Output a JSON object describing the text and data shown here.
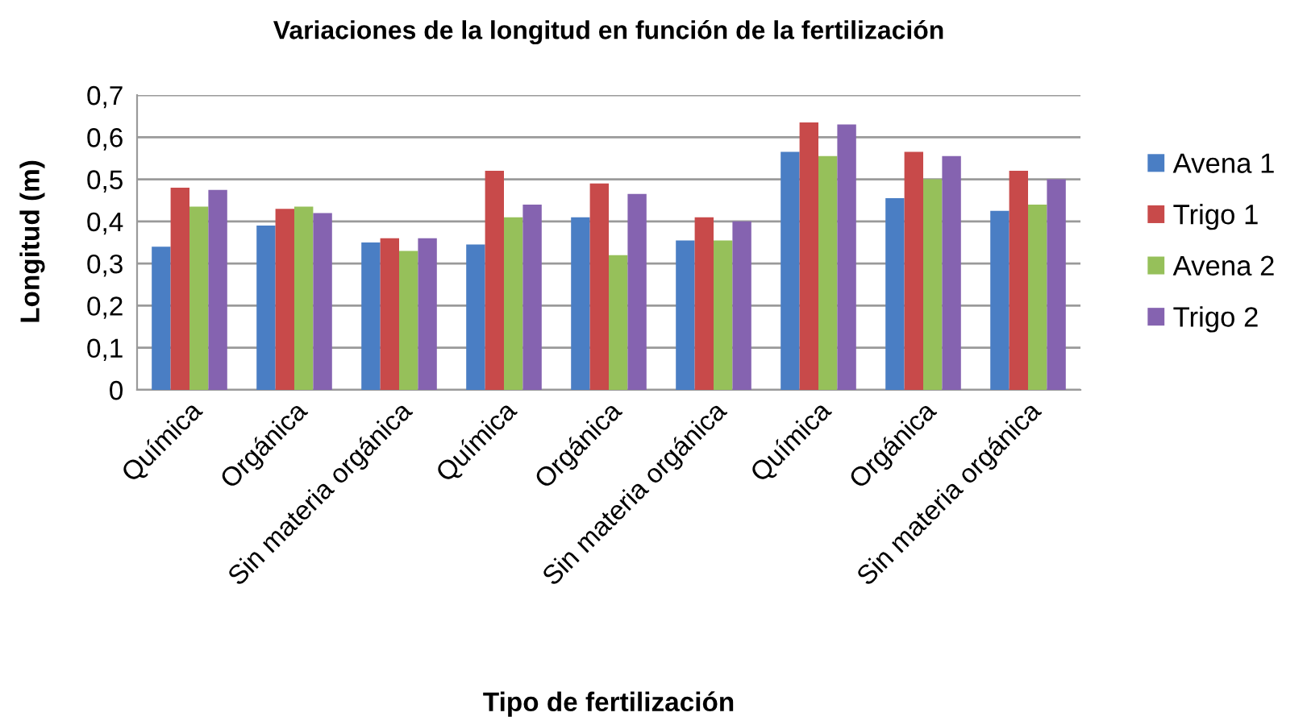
{
  "chart_data": {
    "type": "bar",
    "title": "Variaciones de la longitud en función de la fertilización",
    "xlabel": "Tipo de fertilización",
    "ylabel": "Longitud (m)",
    "categories": [
      "Química",
      "Orgánica",
      "Sin materia orgánica",
      "Química",
      "Orgánica",
      "Sin materia orgánica",
      "Química",
      "Orgánica",
      "Sin materia orgánica"
    ],
    "series": [
      {
        "name": "Avena 1",
        "color": "#4a7ec4",
        "values": [
          0.34,
          0.39,
          0.35,
          0.345,
          0.41,
          0.355,
          0.565,
          0.455,
          0.425
        ]
      },
      {
        "name": "Trigo 1",
        "color": "#c84a4a",
        "values": [
          0.48,
          0.43,
          0.36,
          0.52,
          0.49,
          0.41,
          0.635,
          0.565,
          0.52
        ]
      },
      {
        "name": "Avena 2",
        "color": "#96c05a",
        "values": [
          0.435,
          0.435,
          0.33,
          0.41,
          0.32,
          0.355,
          0.555,
          0.5,
          0.44
        ]
      },
      {
        "name": "Trigo 2",
        "color": "#8563b0",
        "values": [
          0.475,
          0.42,
          0.36,
          0.44,
          0.465,
          0.4,
          0.63,
          0.555,
          0.5
        ]
      }
    ],
    "ylim": [
      0,
      0.7
    ],
    "yticks": [
      0,
      {
        "value": 0.1,
        "label": "0,1"
      },
      {
        "value": 0.2,
        "label": "0,2"
      },
      {
        "value": 0.3,
        "label": "0,3"
      },
      {
        "value": 0.4,
        "label": "0,4"
      },
      {
        "value": 0.5,
        "label": "0,5"
      },
      {
        "value": 0.6,
        "label": "0,6"
      },
      {
        "value": 0.7,
        "label": "0,7"
      }
    ],
    "grid": "y",
    "legend": "right"
  }
}
